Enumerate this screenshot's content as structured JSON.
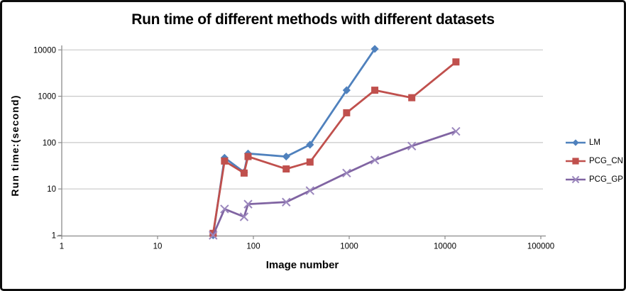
{
  "chart_data": {
    "type": "line",
    "title": "Run time of different methods with different datasets",
    "xlabel": "Image number",
    "ylabel": "Run time:(second)",
    "x_scale": "log",
    "y_scale": "log",
    "xlim": [
      1,
      100000
    ],
    "ylim": [
      1,
      10000
    ],
    "x_ticks": [
      1,
      10,
      100,
      1000,
      10000,
      100000
    ],
    "y_ticks": [
      1,
      10,
      100,
      1000,
      10000
    ],
    "grid": "horizontal-major",
    "legend_position": "right",
    "series": [
      {
        "name": "LM",
        "color": "#4F81BD",
        "marker": "diamond",
        "x": [
          38,
          50,
          80,
          88,
          220,
          390,
          940,
          1850
        ],
        "y": [
          1,
          47,
          23,
          58,
          50,
          90,
          1350,
          10500
        ]
      },
      {
        "name": "PCG_CN",
        "color": "#C0504D",
        "marker": "square",
        "x": [
          38,
          50,
          80,
          88,
          220,
          390,
          940,
          1850,
          4500,
          13000
        ],
        "y": [
          1.1,
          40,
          22,
          50,
          27,
          38,
          440,
          1350,
          930,
          5500
        ]
      },
      {
        "name": "PCG_GP",
        "color": "#8064A2",
        "marker": "x",
        "marker_color": "#9B87BD",
        "x": [
          38,
          50,
          80,
          88,
          220,
          390,
          940,
          1850,
          4500,
          13000
        ],
        "y": [
          1,
          3.7,
          2.5,
          4.7,
          5.2,
          9.2,
          22,
          42,
          84,
          175
        ]
      }
    ],
    "colors": {
      "grid": "#C9C9C9",
      "axis": "#8C8C8C",
      "text": "#000000",
      "background": "#FFFFFF"
    }
  }
}
